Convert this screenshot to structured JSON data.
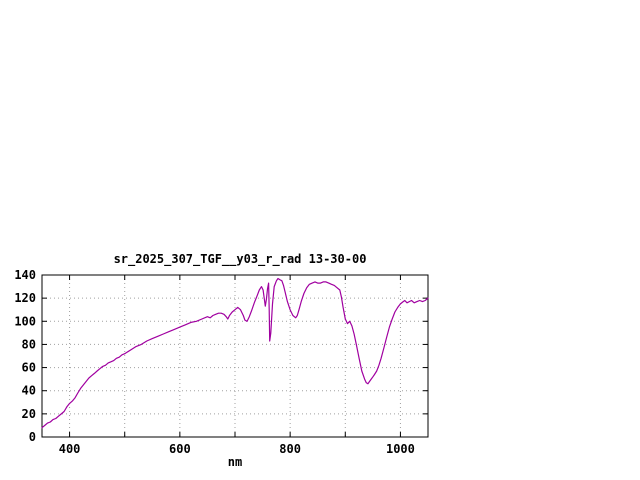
{
  "window": {
    "background_color": "#ffffff"
  },
  "chart_data": {
    "type": "line",
    "title": "sr_2025_307_TGF__y03_r_rad 13-30-00",
    "xlabel": "nm",
    "ylabel": "",
    "xlim": [
      350,
      1050
    ],
    "ylim": [
      0,
      140
    ],
    "x_tick_values": [
      400,
      600,
      800,
      1000
    ],
    "x_tick_labels": [
      "400",
      "600",
      "800",
      "1000"
    ],
    "x_grid_step": 100,
    "y_tick_values": [
      0,
      20,
      40,
      60,
      80,
      100,
      120,
      140
    ],
    "y_tick_labels": [
      "0",
      "20",
      "40",
      "60",
      "80",
      "100",
      "120",
      "140"
    ],
    "grid": true,
    "legend_position": "none",
    "line_color": "#a000a0",
    "grid_color": "#a0a0a0",
    "axis_color": "#000000",
    "series": [
      {
        "name": "sr_2025_307_TGF__y03_r_rad 13-30-00",
        "x": [
          350,
          355,
          360,
          365,
          370,
          375,
          380,
          385,
          390,
          395,
          400,
          405,
          410,
          415,
          420,
          425,
          430,
          435,
          440,
          445,
          450,
          455,
          460,
          465,
          470,
          475,
          480,
          485,
          490,
          495,
          500,
          510,
          520,
          530,
          540,
          550,
          560,
          570,
          580,
          590,
          600,
          610,
          620,
          630,
          640,
          650,
          655,
          660,
          665,
          670,
          675,
          680,
          684,
          687,
          690,
          695,
          700,
          705,
          710,
          715,
          718,
          722,
          726,
          730,
          735,
          740,
          744,
          748,
          751,
          753,
          755,
          757,
          759,
          761,
          762,
          763,
          765,
          768,
          771,
          775,
          778,
          781,
          785,
          788,
          791,
          795,
          800,
          805,
          810,
          813,
          816,
          820,
          825,
          830,
          835,
          840,
          845,
          850,
          855,
          860,
          865,
          870,
          875,
          880,
          885,
          890,
          893,
          896,
          900,
          904,
          908,
          912,
          916,
          920,
          925,
          930,
          935,
          938,
          941,
          944,
          947,
          950,
          953,
          957,
          961,
          965,
          970,
          975,
          980,
          985,
          990,
          995,
          1000,
          1005,
          1008,
          1012,
          1016,
          1020,
          1025,
          1030,
          1035,
          1040,
          1045,
          1050
        ],
        "y": [
          8,
          10,
          12,
          13,
          15,
          16,
          18,
          20,
          22,
          26,
          29,
          31,
          34,
          38,
          42,
          45,
          48,
          51,
          53,
          55,
          57,
          59,
          61,
          62,
          64,
          65,
          66,
          68,
          69,
          71,
          72,
          75,
          78,
          80,
          83,
          85,
          87,
          89,
          91,
          93,
          95,
          97,
          99,
          100,
          102,
          104,
          103,
          105,
          106,
          107,
          107,
          106,
          104,
          102,
          105,
          108,
          110,
          112,
          110,
          105,
          101,
          100,
          104,
          109,
          116,
          122,
          127,
          130,
          127,
          120,
          113,
          119,
          128,
          133,
          110,
          83,
          90,
          115,
          130,
          135,
          137,
          136,
          135,
          131,
          125,
          117,
          110,
          105,
          103,
          105,
          110,
          117,
          124,
          129,
          132,
          133,
          134,
          133,
          133,
          134,
          134,
          133,
          132,
          131,
          129,
          127,
          121,
          112,
          102,
          98,
          100,
          96,
          89,
          80,
          68,
          57,
          50,
          47,
          46,
          48,
          50,
          52,
          54,
          57,
          62,
          68,
          77,
          86,
          95,
          102,
          108,
          112,
          115,
          117,
          118,
          116,
          117,
          118,
          116,
          117,
          118,
          117,
          118,
          120
        ]
      }
    ]
  }
}
